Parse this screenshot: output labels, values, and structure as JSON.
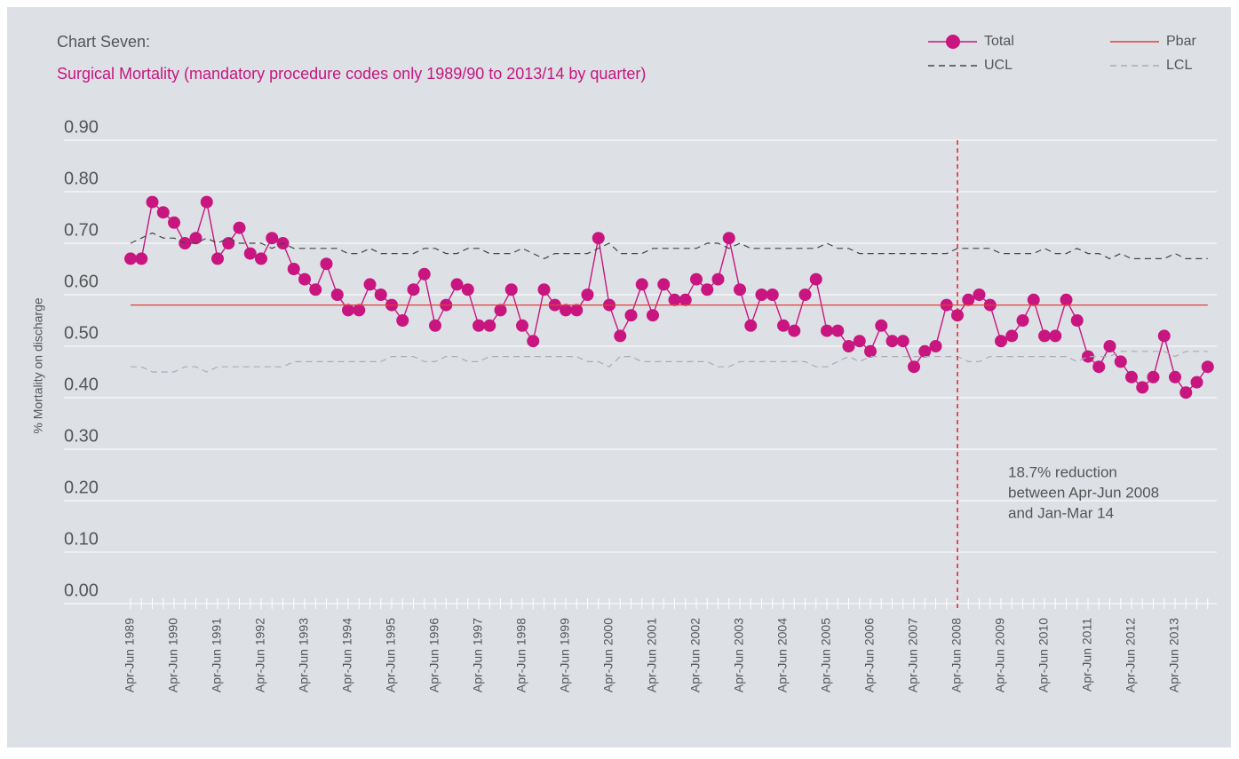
{
  "chart_data": {
    "type": "line",
    "title": "Chart Seven:",
    "subtitle": "Surgical Mortality (mandatory procedure codes only 1989/90 to 2013/14 by quarter)",
    "y_label": "% Mortality on discharge",
    "categories": [
      "Apr-Jun 1989",
      null,
      null,
      null,
      "Apr-Jun 1990",
      null,
      null,
      null,
      "Apr-Jun 1991",
      null,
      null,
      null,
      "Apr-Jun 1992",
      null,
      null,
      null,
      "Apr-Jun 1993",
      null,
      null,
      null,
      "Apr-Jun 1994",
      null,
      null,
      null,
      "Apr-Jun 1995",
      null,
      null,
      null,
      "Apr-Jun 1996",
      null,
      null,
      null,
      "Apr-Jun 1997",
      null,
      null,
      null,
      "Apr-Jun 1998",
      null,
      null,
      null,
      "Apr-Jun 1999",
      null,
      null,
      null,
      "Apr-Jun 2000",
      null,
      null,
      null,
      "Apr-Jun 2001",
      null,
      null,
      null,
      "Apr-Jun 2002",
      null,
      null,
      null,
      "Apr-Jun 2003",
      null,
      null,
      null,
      "Apr-Jun 2004",
      null,
      null,
      null,
      "Apr-Jun 2005",
      null,
      null,
      null,
      "Apr-Jun 2006",
      null,
      null,
      null,
      "Apr-Jun 2007",
      null,
      null,
      null,
      "Apr-Jun 2008",
      null,
      null,
      null,
      "Apr-Jun 2009",
      null,
      null,
      null,
      "Apr-Jun 2010",
      null,
      null,
      null,
      "Apr-Jun 2011",
      null,
      null,
      null,
      "Apr-Jun 2012",
      null,
      null,
      null,
      "Apr-Jun 2013",
      null,
      null,
      null
    ],
    "series": [
      {
        "name": "Total",
        "color": "#c8157f",
        "style": "solid",
        "marker": true,
        "values": [
          0.67,
          0.67,
          0.78,
          0.76,
          0.74,
          0.7,
          0.71,
          0.78,
          0.67,
          0.7,
          0.73,
          0.68,
          0.67,
          0.71,
          0.7,
          0.65,
          0.63,
          0.61,
          0.66,
          0.6,
          0.57,
          0.57,
          0.62,
          0.6,
          0.58,
          0.55,
          0.61,
          0.64,
          0.54,
          0.58,
          0.62,
          0.61,
          0.54,
          0.54,
          0.57,
          0.61,
          0.54,
          0.51,
          0.61,
          0.58,
          0.57,
          0.57,
          0.6,
          0.71,
          0.58,
          0.52,
          0.56,
          0.62,
          0.56,
          0.62,
          0.59,
          0.59,
          0.63,
          0.61,
          0.63,
          0.71,
          0.61,
          0.54,
          0.6,
          0.6,
          0.54,
          0.53,
          0.6,
          0.63,
          0.53,
          0.53,
          0.5,
          0.51,
          0.49,
          0.54,
          0.51,
          0.51,
          0.46,
          0.49,
          0.5,
          0.58,
          0.56,
          0.59,
          0.6,
          0.58,
          0.51,
          0.52,
          0.55,
          0.59,
          0.52,
          0.52,
          0.59,
          0.55,
          0.48,
          0.46,
          0.5,
          0.47,
          0.44,
          0.42,
          0.44,
          0.52,
          0.44,
          0.41,
          0.43,
          0.46
        ]
      },
      {
        "name": "Pbar",
        "color": "#e0403a",
        "style": "solid",
        "marker": false,
        "values": [
          0.58,
          0.58,
          0.58,
          0.58,
          0.58,
          0.58,
          0.58,
          0.58,
          0.58,
          0.58,
          0.58,
          0.58,
          0.58,
          0.58,
          0.58,
          0.58,
          0.58,
          0.58,
          0.58,
          0.58,
          0.58,
          0.58,
          0.58,
          0.58,
          0.58,
          0.58,
          0.58,
          0.58,
          0.58,
          0.58,
          0.58,
          0.58,
          0.58,
          0.58,
          0.58,
          0.58,
          0.58,
          0.58,
          0.58,
          0.58,
          0.58,
          0.58,
          0.58,
          0.58,
          0.58,
          0.58,
          0.58,
          0.58,
          0.58,
          0.58,
          0.58,
          0.58,
          0.58,
          0.58,
          0.58,
          0.58,
          0.58,
          0.58,
          0.58,
          0.58,
          0.58,
          0.58,
          0.58,
          0.58,
          0.58,
          0.58,
          0.58,
          0.58,
          0.58,
          0.58,
          0.58,
          0.58,
          0.58,
          0.58,
          0.58,
          0.58,
          0.58,
          0.58,
          0.58,
          0.58,
          0.58,
          0.58,
          0.58,
          0.58,
          0.58,
          0.58,
          0.58,
          0.58,
          0.58,
          0.58,
          0.58,
          0.58,
          0.58,
          0.58,
          0.58,
          0.58,
          0.58,
          0.58,
          0.58,
          0.58
        ]
      },
      {
        "name": "UCL",
        "color": "#444444",
        "style": "dashed",
        "marker": false,
        "values": [
          0.7,
          0.71,
          0.72,
          0.71,
          0.71,
          0.7,
          0.7,
          0.71,
          0.7,
          0.71,
          0.7,
          0.7,
          0.7,
          0.69,
          0.7,
          0.69,
          0.69,
          0.69,
          0.69,
          0.69,
          0.68,
          0.68,
          0.69,
          0.68,
          0.68,
          0.68,
          0.68,
          0.69,
          0.69,
          0.68,
          0.68,
          0.69,
          0.69,
          0.68,
          0.68,
          0.68,
          0.69,
          0.68,
          0.67,
          0.68,
          0.68,
          0.68,
          0.68,
          0.69,
          0.7,
          0.68,
          0.68,
          0.68,
          0.69,
          0.69,
          0.69,
          0.69,
          0.69,
          0.7,
          0.7,
          0.69,
          0.7,
          0.69,
          0.69,
          0.69,
          0.69,
          0.69,
          0.69,
          0.69,
          0.7,
          0.69,
          0.69,
          0.68,
          0.68,
          0.68,
          0.68,
          0.68,
          0.68,
          0.68,
          0.68,
          0.68,
          0.69,
          0.69,
          0.69,
          0.69,
          0.68,
          0.68,
          0.68,
          0.68,
          0.69,
          0.68,
          0.68,
          0.69,
          0.68,
          0.68,
          0.67,
          0.68,
          0.67,
          0.67,
          0.67,
          0.67,
          0.68,
          0.67,
          0.67,
          0.67
        ]
      },
      {
        "name": "LCL",
        "color": "#a9adb2",
        "style": "dashed",
        "marker": false,
        "values": [
          0.46,
          0.46,
          0.45,
          0.45,
          0.45,
          0.46,
          0.46,
          0.45,
          0.46,
          0.46,
          0.46,
          0.46,
          0.46,
          0.46,
          0.46,
          0.47,
          0.47,
          0.47,
          0.47,
          0.47,
          0.47,
          0.47,
          0.47,
          0.47,
          0.48,
          0.48,
          0.48,
          0.47,
          0.47,
          0.48,
          0.48,
          0.47,
          0.47,
          0.48,
          0.48,
          0.48,
          0.48,
          0.48,
          0.48,
          0.48,
          0.48,
          0.48,
          0.47,
          0.47,
          0.46,
          0.48,
          0.48,
          0.47,
          0.47,
          0.47,
          0.47,
          0.47,
          0.47,
          0.47,
          0.46,
          0.46,
          0.47,
          0.47,
          0.47,
          0.47,
          0.47,
          0.47,
          0.47,
          0.46,
          0.46,
          0.47,
          0.48,
          0.47,
          0.48,
          0.48,
          0.48,
          0.48,
          0.48,
          0.48,
          0.48,
          0.48,
          0.48,
          0.47,
          0.47,
          0.48,
          0.48,
          0.48,
          0.48,
          0.48,
          0.48,
          0.48,
          0.48,
          0.47,
          0.48,
          0.48,
          0.48,
          0.49,
          0.49,
          0.49,
          0.49,
          0.49,
          0.48,
          0.49,
          0.49,
          0.49
        ]
      }
    ],
    "ylim": [
      0,
      0.9
    ],
    "yticks": [
      {
        "value": 0,
        "label": "0.00"
      },
      {
        "value": 0.1,
        "label": "0.10"
      },
      {
        "value": 0.2,
        "label": "0.20"
      },
      {
        "value": 0.3,
        "label": "0.30"
      },
      {
        "value": 0.4,
        "label": "0.40"
      },
      {
        "value": 0.5,
        "label": "0.50"
      },
      {
        "value": 0.6,
        "label": "0.60"
      },
      {
        "value": 0.7,
        "label": "0.70"
      },
      {
        "value": 0.8,
        "label": "0.80"
      },
      {
        "value": 0.9,
        "label": "0.90"
      }
    ],
    "grid": true,
    "legend": "top-right",
    "reference_line": {
      "category": "Apr-Jun 2008",
      "color": "#e0202a"
    },
    "annotation": [
      "18.7% reduction",
      "between Apr-Jun 2008",
      "and Jan-Mar 14"
    ]
  }
}
